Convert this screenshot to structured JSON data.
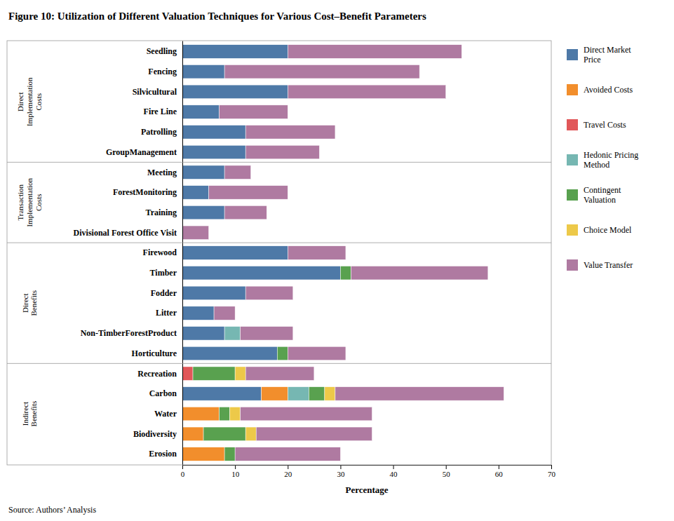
{
  "chart_data": {
    "type": "bar",
    "orientation": "horizontal",
    "stacked": true,
    "title": "Figure 10: Utilization of Different Valuation Techniques for Various Cost–Benefit Parameters",
    "categories": [
      "Seedling",
      "Fencing",
      "Silvicultural",
      "Fire Line",
      "Patrolling",
      "GroupManagement",
      "Meeting",
      "ForestMonitoring",
      "Training",
      "Divisional Forest Office Visit",
      "Firewood",
      "Timber",
      "Fodder",
      "Litter",
      "Non-TimberForestProduct",
      "Horticulture",
      "Recreation",
      "Carbon",
      "Water",
      "Biodiversity",
      "Erosion"
    ],
    "category_groups": [
      "Direct\nImplementation\nCosts",
      "Direct\nImplementation\nCosts",
      "Direct\nImplementation\nCosts",
      "Direct\nImplementation\nCosts",
      "Direct\nImplementation\nCosts",
      "Direct\nImplementation\nCosts",
      "Transaction\nImplementation\nCosts",
      "Transaction\nImplementation\nCosts",
      "Transaction\nImplementation\nCosts",
      "Transaction\nImplementation\nCosts",
      "Direct\nBenefits",
      "Direct\nBenefits",
      "Direct\nBenefits",
      "Direct\nBenefits",
      "Direct\nBenefits",
      "Direct\nBenefits",
      "Indirect\nBenefits",
      "Indirect\nBenefits",
      "Indirect\nBenefits",
      "Indirect\nBenefits",
      "Indirect\nBenefits"
    ],
    "series": [
      {
        "name": "Direct Market\nPrice",
        "values": [
          20,
          8,
          20,
          7,
          12,
          12,
          8,
          5,
          8,
          0,
          20,
          30,
          12,
          6,
          8,
          18,
          0,
          15,
          0,
          0,
          0
        ]
      },
      {
        "name": "Avoided Costs",
        "values": [
          0,
          0,
          0,
          0,
          0,
          0,
          0,
          0,
          0,
          0,
          0,
          0,
          0,
          0,
          0,
          0,
          0,
          5,
          7,
          4,
          8
        ]
      },
      {
        "name": "Travel Costs",
        "values": [
          0,
          0,
          0,
          0,
          0,
          0,
          0,
          0,
          0,
          0,
          0,
          0,
          0,
          0,
          0,
          0,
          2,
          0,
          0,
          0,
          0
        ]
      },
      {
        "name": "Hedonic Pricing\nMethod",
        "values": [
          0,
          0,
          0,
          0,
          0,
          0,
          0,
          0,
          0,
          0,
          0,
          0,
          0,
          0,
          3,
          0,
          0,
          4,
          0,
          0,
          0
        ]
      },
      {
        "name": "Contingent\nValuation",
        "values": [
          0,
          0,
          0,
          0,
          0,
          0,
          0,
          0,
          0,
          0,
          0,
          2,
          0,
          0,
          0,
          2,
          8,
          3,
          2,
          8,
          2
        ]
      },
      {
        "name": "Choice Model",
        "values": [
          0,
          0,
          0,
          0,
          0,
          0,
          0,
          0,
          0,
          0,
          0,
          0,
          0,
          0,
          0,
          0,
          2,
          2,
          2,
          2,
          0
        ]
      },
      {
        "name": "Value Transfer",
        "values": [
          33,
          37,
          30,
          13,
          17,
          14,
          5,
          15,
          8,
          5,
          11,
          26,
          9,
          4,
          10,
          11,
          13,
          32,
          25,
          22,
          20
        ]
      }
    ],
    "xlim": [
      0,
      70
    ],
    "xticks": [
      0,
      10,
      20,
      30,
      40,
      50,
      60,
      70
    ],
    "xlabel": "Percentage",
    "annotations": [
      "Source: Authors’ Analysis"
    ]
  }
}
